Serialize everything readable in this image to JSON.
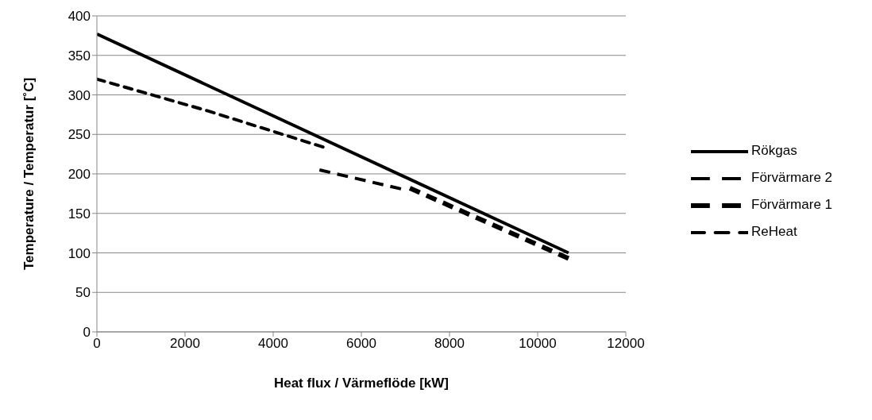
{
  "chart_data": {
    "type": "line",
    "xlabel": "Heat flux / Värmeflöde [kW]",
    "ylabel": "Temperature / Temperatur [˚C]",
    "xlim": [
      0,
      12000
    ],
    "xticks": [
      0,
      2000,
      4000,
      6000,
      8000,
      10000,
      12000
    ],
    "ylim": [
      0,
      400
    ],
    "yticks": [
      0,
      50,
      100,
      150,
      200,
      250,
      300,
      350,
      400
    ],
    "grid": "y",
    "legend": "right",
    "marker": "none",
    "series": [
      {
        "name": "Rökgas",
        "color": "#000000",
        "line_style": "solid",
        "x": [
          0,
          10700
        ],
        "values": [
          377,
          100
        ]
      },
      {
        "name": "Förvärmare 2",
        "color": "#000000",
        "line_style": "dashed",
        "x": [
          5050,
          6900
        ],
        "values": [
          205,
          181
        ]
      },
      {
        "name": "Förvärmare 1",
        "color": "#000000",
        "line_style": "dashed",
        "x": [
          7100,
          10700
        ],
        "values": [
          182,
          93
        ]
      },
      {
        "name": "ReHeat",
        "color": "#000000",
        "line_style": "dotted",
        "x": [
          0,
          2500,
          5130
        ],
        "values": [
          320,
          280,
          234
        ]
      }
    ]
  }
}
